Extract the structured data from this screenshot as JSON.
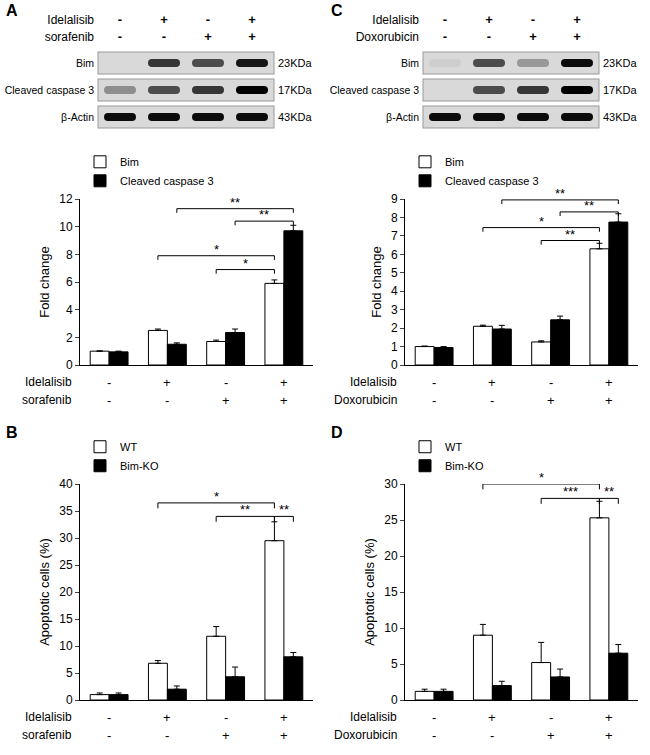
{
  "blots": [
    {
      "panel": "A",
      "treatments": [
        {
          "name": "Idelalisib",
          "signs": [
            "-",
            "+",
            "-",
            "+"
          ]
        },
        {
          "name": "sorafenib",
          "signs": [
            "-",
            "-",
            "+",
            "+"
          ]
        }
      ],
      "bands": [
        {
          "label": "Bim",
          "size": "23KDa",
          "intensity": [
            0.0,
            0.75,
            0.65,
            0.9
          ]
        },
        {
          "label": "Cleaved caspase 3",
          "size": "17KDa",
          "intensity": [
            0.35,
            0.65,
            0.75,
            1.0
          ]
        },
        {
          "label": "β-Actin",
          "size": "43KDa",
          "intensity": [
            0.95,
            0.95,
            0.95,
            0.95
          ]
        }
      ]
    },
    {
      "panel": "C",
      "treatments": [
        {
          "name": "Idelalisib",
          "signs": [
            "-",
            "+",
            "-",
            "+"
          ]
        },
        {
          "name": "Doxorubicin",
          "signs": [
            "-",
            "-",
            "+",
            "+"
          ]
        }
      ],
      "bands": [
        {
          "label": "Bim",
          "size": "23KDa",
          "intensity": [
            0.05,
            0.65,
            0.3,
            0.95
          ]
        },
        {
          "label": "Cleaved caspase 3",
          "size": "17KDa",
          "intensity": [
            0.0,
            0.65,
            0.75,
            1.0
          ]
        },
        {
          "label": "β-Actin",
          "size": "43KDa",
          "intensity": [
            0.95,
            0.95,
            0.95,
            0.95
          ]
        }
      ]
    }
  ],
  "chart_data": [
    {
      "type": "bar",
      "y_label": "Fold change",
      "categories": [
        null,
        null,
        null,
        null
      ],
      "tick_labels": "y",
      "grid": false,
      "legend": "top-left",
      "treatments": [
        {
          "name": "Idelalisib",
          "signs": [
            "-",
            "+",
            "-",
            "+"
          ]
        },
        {
          "name": "sorafenib",
          "signs": [
            "-",
            "-",
            "+",
            "+"
          ]
        }
      ],
      "series": [
        {
          "name": "Bim",
          "color": "#ffffff",
          "values": [
            1.0,
            2.5,
            1.7,
            5.9
          ],
          "errors": [
            0.02,
            0.1,
            0.1,
            0.25
          ]
        },
        {
          "name": "Cleaved caspase 3",
          "color": "#000000",
          "values": [
            0.95,
            1.5,
            2.35,
            9.7
          ],
          "errors": [
            0.05,
            0.1,
            0.25,
            0.4
          ]
        }
      ],
      "ylim": [
        0,
        12
      ],
      "yticks": [
        0,
        2,
        4,
        6,
        8,
        10,
        12
      ],
      "brackets": [
        {
          "from": [
            1,
            0
          ],
          "to": [
            3,
            0
          ],
          "y": 7.9,
          "label": "*"
        },
        {
          "from": [
            2,
            0
          ],
          "to": [
            3,
            0
          ],
          "y": 6.9,
          "label": "*"
        },
        {
          "from": [
            1,
            1
          ],
          "to": [
            3,
            1
          ],
          "y": 11.3,
          "label": "**"
        },
        {
          "from": [
            2,
            1
          ],
          "to": [
            3,
            1
          ],
          "y": 10.4,
          "label": "**"
        }
      ]
    },
    {
      "type": "bar",
      "panel": "B",
      "y_label": "Apoptotic cells (%)",
      "categories": [
        null,
        null,
        null,
        null
      ],
      "tick_labels": "y",
      "grid": false,
      "legend": "top-left",
      "treatments": [
        {
          "name": "Idelalisib",
          "signs": [
            "-",
            "+",
            "-",
            "+"
          ]
        },
        {
          "name": "sorafenib",
          "signs": [
            "-",
            "-",
            "+",
            "+"
          ]
        }
      ],
      "series": [
        {
          "name": "WT",
          "color": "#ffffff",
          "values": [
            1.0,
            6.8,
            11.8,
            29.5
          ],
          "errors": [
            0.3,
            0.5,
            1.8,
            3.5
          ]
        },
        {
          "name": "Bim-KO",
          "color": "#000000",
          "values": [
            1.0,
            2.0,
            4.3,
            8.0
          ],
          "errors": [
            0.3,
            0.6,
            1.8,
            0.8
          ]
        }
      ],
      "ylim": [
        0,
        40
      ],
      "yticks": [
        0,
        5,
        10,
        15,
        20,
        25,
        30,
        35,
        40
      ],
      "brackets": [
        {
          "from": [
            1,
            0
          ],
          "to": [
            3,
            0
          ],
          "y": 36.5,
          "label": "*"
        },
        {
          "from": [
            2,
            0
          ],
          "to": [
            3,
            0
          ],
          "y": 34,
          "label": "**"
        },
        {
          "from": [
            3,
            0
          ],
          "to": [
            3,
            1
          ],
          "y": 34,
          "label": "**"
        }
      ]
    },
    {
      "type": "bar",
      "y_label": "Fold change",
      "categories": [
        null,
        null,
        null,
        null
      ],
      "tick_labels": "y",
      "grid": false,
      "legend": "top-left",
      "treatments": [
        {
          "name": "Idelalisib",
          "signs": [
            "-",
            "+",
            "-",
            "+"
          ]
        },
        {
          "name": "Doxorubicin",
          "signs": [
            "-",
            "-",
            "+",
            "+"
          ]
        }
      ],
      "series": [
        {
          "name": "Bim",
          "color": "#ffffff",
          "values": [
            1.0,
            2.1,
            1.25,
            6.3
          ],
          "errors": [
            0.03,
            0.06,
            0.06,
            0.3
          ]
        },
        {
          "name": "Cleaved caspase 3",
          "color": "#000000",
          "values": [
            0.95,
            1.95,
            2.45,
            7.75
          ],
          "errors": [
            0.05,
            0.2,
            0.2,
            0.45
          ]
        }
      ],
      "ylim": [
        0,
        9
      ],
      "yticks": [
        0,
        1,
        2,
        3,
        4,
        5,
        6,
        7,
        8,
        9
      ],
      "brackets": [
        {
          "from": [
            1,
            0
          ],
          "to": [
            3,
            0
          ],
          "y": 7.45,
          "label": "*"
        },
        {
          "from": [
            2,
            0
          ],
          "to": [
            3,
            0
          ],
          "y": 6.75,
          "label": "**"
        },
        {
          "from": [
            1,
            1
          ],
          "to": [
            3,
            1
          ],
          "y": 8.95,
          "label": "**"
        },
        {
          "from": [
            2,
            1
          ],
          "to": [
            3,
            1
          ],
          "y": 8.3,
          "label": "**"
        }
      ]
    },
    {
      "type": "bar",
      "panel": "D",
      "y_label": "Apoptotic cells (%)",
      "categories": [
        null,
        null,
        null,
        null
      ],
      "tick_labels": "y",
      "grid": false,
      "legend": "top-left",
      "treatments": [
        {
          "name": "Idelalisib",
          "signs": [
            "-",
            "+",
            "-",
            "+"
          ]
        },
        {
          "name": "Doxorubicin",
          "signs": [
            "-",
            "-",
            "+",
            "+"
          ]
        }
      ],
      "series": [
        {
          "name": "WT",
          "color": "#ffffff",
          "values": [
            1.2,
            9.0,
            5.2,
            25.3
          ],
          "errors": [
            0.3,
            1.5,
            2.8,
            2.3
          ]
        },
        {
          "name": "Bim-KO",
          "color": "#000000",
          "values": [
            1.2,
            2.0,
            3.2,
            6.5
          ],
          "errors": [
            0.3,
            0.6,
            1.1,
            1.2
          ]
        }
      ],
      "ylim": [
        0,
        30
      ],
      "yticks": [
        0,
        5,
        10,
        15,
        20,
        25,
        30
      ],
      "brackets": [
        {
          "from": [
            1,
            0
          ],
          "to": [
            3,
            0
          ],
          "y": 30,
          "label": "*"
        },
        {
          "from": [
            2,
            0
          ],
          "to": [
            3,
            0
          ],
          "y": 28,
          "label": "***"
        },
        {
          "from": [
            3,
            0
          ],
          "to": [
            3,
            1
          ],
          "y": 28,
          "label": "**"
        }
      ]
    }
  ]
}
